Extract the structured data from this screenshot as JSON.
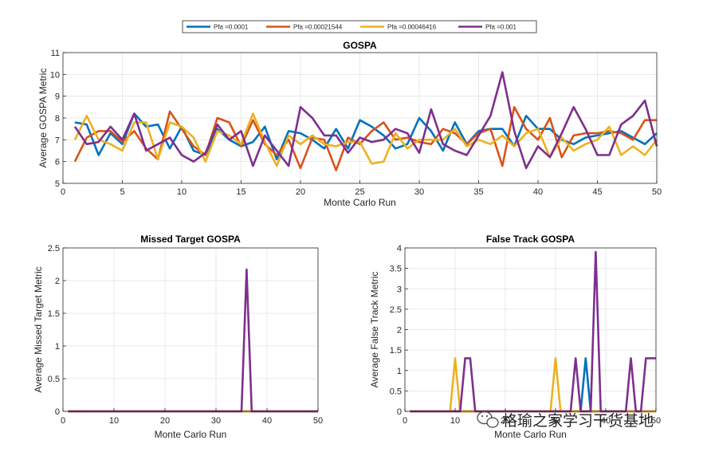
{
  "legend": {
    "entries": [
      "Pfa =0.0001",
      "Pfa =0.00021544",
      "Pfa =0.00046416",
      "Pfa =0.001"
    ],
    "colors": [
      "#0072BD",
      "#D95319",
      "#EDB120",
      "#7E2F8E"
    ]
  },
  "watermark": {
    "text": "格瑜之家学习干货基地",
    "icon": "wechat-icon"
  },
  "chart_data": [
    {
      "type": "line",
      "title": "GOSPA",
      "xlabel": "Monte Carlo Run",
      "ylabel": "Average GOSPA Metric",
      "xlim": [
        0,
        50
      ],
      "ylim": [
        5,
        11
      ],
      "xticks": [
        0,
        5,
        10,
        15,
        20,
        25,
        30,
        35,
        40,
        45,
        50
      ],
      "yticks": [
        5,
        6,
        7,
        8,
        9,
        10,
        11
      ],
      "grid": true,
      "x": [
        1,
        2,
        3,
        4,
        5,
        6,
        7,
        8,
        9,
        10,
        11,
        12,
        13,
        14,
        15,
        16,
        17,
        18,
        19,
        20,
        21,
        22,
        23,
        24,
        25,
        26,
        27,
        28,
        29,
        30,
        31,
        32,
        33,
        34,
        35,
        36,
        37,
        38,
        39,
        40,
        41,
        42,
        43,
        44,
        45,
        46,
        47,
        48,
        49,
        50
      ],
      "series": [
        {
          "name": "Pfa =0.0001",
          "values": [
            7.8,
            7.7,
            6.3,
            7.3,
            6.8,
            8.2,
            7.6,
            7.7,
            6.6,
            7.6,
            6.5,
            6.3,
            7.5,
            7.0,
            6.7,
            6.9,
            7.6,
            6.1,
            7.4,
            7.3,
            7.0,
            6.6,
            7.5,
            6.6,
            7.9,
            7.6,
            7.2,
            6.6,
            6.8,
            8.0,
            7.4,
            6.5,
            7.8,
            6.8,
            7.4,
            7.5,
            7.5,
            6.7,
            8.1,
            7.5,
            7.5,
            7.0,
            6.8,
            7.1,
            7.2,
            7.3,
            7.4,
            7.1,
            6.8,
            7.3
          ]
        },
        {
          "name": "Pfa =0.00021544",
          "values": [
            6.0,
            7.1,
            7.4,
            7.4,
            6.9,
            7.4,
            6.6,
            6.1,
            8.3,
            7.5,
            6.7,
            6.3,
            8.0,
            7.8,
            6.7,
            7.9,
            6.8,
            6.3,
            7.0,
            5.7,
            7.1,
            7.0,
            5.6,
            7.1,
            6.8,
            7.4,
            7.8,
            7.0,
            7.1,
            6.9,
            6.8,
            7.5,
            7.3,
            6.8,
            7.3,
            7.5,
            5.8,
            8.5,
            7.5,
            7.0,
            8.0,
            6.2,
            7.2,
            7.3,
            7.3,
            7.4,
            7.3,
            7.0,
            7.9,
            7.9
          ]
        },
        {
          "name": "Pfa =0.00046416",
          "values": [
            7.0,
            8.1,
            7.0,
            6.8,
            6.5,
            7.8,
            7.8,
            6.1,
            7.8,
            7.6,
            7.1,
            6.0,
            7.4,
            7.2,
            6.8,
            8.2,
            6.9,
            5.8,
            7.2,
            6.8,
            7.2,
            6.8,
            6.7,
            6.9,
            6.9,
            5.9,
            6.0,
            7.3,
            6.6,
            7.0,
            7.0,
            7.0,
            7.5,
            6.7,
            7.0,
            6.8,
            7.2,
            6.7,
            7.3,
            7.5,
            6.2,
            7.1,
            6.5,
            6.8,
            7.0,
            7.6,
            6.3,
            6.7,
            6.3,
            7.0
          ]
        },
        {
          "name": "Pfa =0.001",
          "values": [
            7.6,
            6.8,
            6.9,
            7.6,
            7.0,
            8.2,
            6.5,
            6.8,
            7.1,
            6.3,
            6.0,
            6.4,
            7.7,
            7.0,
            7.4,
            5.8,
            7.2,
            6.5,
            5.8,
            8.5,
            8.0,
            7.2,
            7.2,
            6.4,
            7.1,
            6.9,
            7.0,
            7.5,
            7.3,
            6.4,
            8.4,
            6.8,
            6.5,
            6.3,
            7.2,
            8.1,
            10.1,
            7.4,
            5.7,
            6.7,
            6.2,
            7.3,
            8.5,
            7.5,
            6.3,
            6.3,
            7.7,
            8.1,
            8.8,
            6.7
          ]
        }
      ]
    },
    {
      "type": "line",
      "title": "Missed Target GOSPA",
      "xlabel": "Monte Carlo Run",
      "ylabel": "Average Missed Target Metric",
      "xlim": [
        0,
        50
      ],
      "ylim": [
        0,
        2.5
      ],
      "xticks": [
        0,
        10,
        20,
        30,
        40,
        50
      ],
      "yticks": [
        0,
        0.5,
        1,
        1.5,
        2,
        2.5
      ],
      "grid": true,
      "x": [
        1,
        2,
        3,
        4,
        5,
        6,
        7,
        8,
        9,
        10,
        11,
        12,
        13,
        14,
        15,
        16,
        17,
        18,
        19,
        20,
        21,
        22,
        23,
        24,
        25,
        26,
        27,
        28,
        29,
        30,
        31,
        32,
        33,
        34,
        35,
        36,
        37,
        38,
        39,
        40,
        41,
        42,
        43,
        44,
        45,
        46,
        47,
        48,
        49,
        50
      ],
      "series": [
        {
          "name": "Pfa =0.0001",
          "values": [
            0,
            0,
            0,
            0,
            0,
            0,
            0,
            0,
            0,
            0,
            0,
            0,
            0,
            0,
            0,
            0,
            0,
            0,
            0,
            0,
            0,
            0,
            0,
            0,
            0,
            0,
            0,
            0,
            0,
            0,
            0,
            0,
            0,
            0,
            0,
            0,
            0,
            0,
            0,
            0,
            0,
            0,
            0,
            0,
            0,
            0,
            0,
            0,
            0,
            0
          ]
        },
        {
          "name": "Pfa =0.00021544",
          "values": [
            0,
            0,
            0,
            0,
            0,
            0,
            0,
            0,
            0,
            0,
            0,
            0,
            0,
            0,
            0,
            0,
            0,
            0,
            0,
            0,
            0,
            0,
            0,
            0,
            0,
            0,
            0,
            0,
            0,
            0,
            0,
            0,
            0,
            0,
            0,
            0,
            0,
            0,
            0,
            0,
            0,
            0,
            0,
            0,
            0,
            0,
            0,
            0,
            0,
            0
          ]
        },
        {
          "name": "Pfa =0.00046416",
          "values": [
            0,
            0,
            0,
            0,
            0,
            0,
            0,
            0,
            0,
            0,
            0,
            0,
            0,
            0,
            0,
            0,
            0,
            0,
            0,
            0,
            0,
            0,
            0,
            0,
            0,
            0,
            0,
            0,
            0,
            0,
            0,
            0,
            0,
            0,
            0,
            0,
            0,
            0,
            0,
            0,
            0,
            0,
            0,
            0,
            0,
            0,
            0,
            0,
            0,
            0
          ]
        },
        {
          "name": "Pfa =0.001",
          "values": [
            0,
            0,
            0,
            0,
            0,
            0,
            0,
            0,
            0,
            0,
            0,
            0,
            0,
            0,
            0,
            0,
            0,
            0,
            0,
            0,
            0,
            0,
            0,
            0,
            0,
            0,
            0,
            0,
            0,
            0,
            0,
            0,
            0,
            0,
            0,
            2.17,
            0,
            0,
            0,
            0,
            0,
            0,
            0,
            0,
            0,
            0,
            0,
            0,
            0,
            0
          ]
        }
      ]
    },
    {
      "type": "line",
      "title": "False Track GOSPA",
      "xlabel": "Monte Carlo Run",
      "ylabel": "Average False Track Metric",
      "xlim": [
        0,
        50
      ],
      "ylim": [
        0,
        4
      ],
      "xticks": [
        0,
        10,
        20,
        30,
        40,
        50
      ],
      "yticks": [
        0,
        0.5,
        1,
        1.5,
        2,
        2.5,
        3,
        3.5,
        4
      ],
      "grid": true,
      "x": [
        1,
        2,
        3,
        4,
        5,
        6,
        7,
        8,
        9,
        10,
        11,
        12,
        13,
        14,
        15,
        16,
        17,
        18,
        19,
        20,
        21,
        22,
        23,
        24,
        25,
        26,
        27,
        28,
        29,
        30,
        31,
        32,
        33,
        34,
        35,
        36,
        37,
        38,
        39,
        40,
        41,
        42,
        43,
        44,
        45,
        46,
        47,
        48,
        49,
        50
      ],
      "series": [
        {
          "name": "Pfa =0.0001",
          "values": [
            0,
            0,
            0,
            0,
            0,
            0,
            0,
            0,
            0,
            0,
            0,
            0,
            0,
            0,
            0,
            0,
            0,
            0,
            0,
            0,
            0,
            0,
            0,
            0,
            0,
            0,
            0,
            0,
            0,
            0,
            0,
            0,
            0,
            0,
            0,
            1.3,
            0,
            0,
            0,
            0,
            0,
            0,
            0,
            0,
            0,
            0,
            0,
            0,
            0,
            0
          ]
        },
        {
          "name": "Pfa =0.00021544",
          "values": [
            0,
            0,
            0,
            0,
            0,
            0,
            0,
            0,
            0,
            0,
            0,
            0,
            0,
            0,
            0,
            0,
            0,
            0,
            0,
            0,
            0,
            0,
            0,
            0,
            0,
            0,
            0,
            0,
            0,
            0,
            0,
            0,
            0,
            0,
            0,
            0,
            0,
            0,
            0,
            0,
            0,
            0,
            0,
            0,
            0,
            0,
            0,
            0,
            0,
            0
          ]
        },
        {
          "name": "Pfa =0.00046416",
          "values": [
            0,
            0,
            0,
            0,
            0,
            0,
            0,
            0,
            0,
            1.3,
            0,
            0,
            0,
            0,
            0,
            0,
            0,
            0,
            0,
            0,
            0,
            0,
            0,
            0,
            0,
            0,
            0,
            0,
            0,
            1.3,
            0,
            0,
            0,
            0,
            0,
            0,
            0,
            0,
            0,
            0,
            0,
            0,
            0,
            0,
            0,
            0,
            0,
            0,
            0,
            0
          ]
        },
        {
          "name": "Pfa =0.001",
          "values": [
            0,
            0,
            0,
            0,
            0,
            0,
            0,
            0,
            0,
            0,
            0,
            1.3,
            1.3,
            0,
            0,
            0,
            0,
            0,
            0,
            0,
            0,
            0,
            0,
            0,
            0,
            0,
            0,
            0,
            0,
            0,
            0,
            0,
            0,
            1.3,
            0,
            0,
            0,
            3.9,
            0,
            0,
            0,
            0,
            0,
            0,
            1.3,
            0,
            0,
            1.3,
            1.3,
            1.3
          ]
        }
      ]
    }
  ]
}
